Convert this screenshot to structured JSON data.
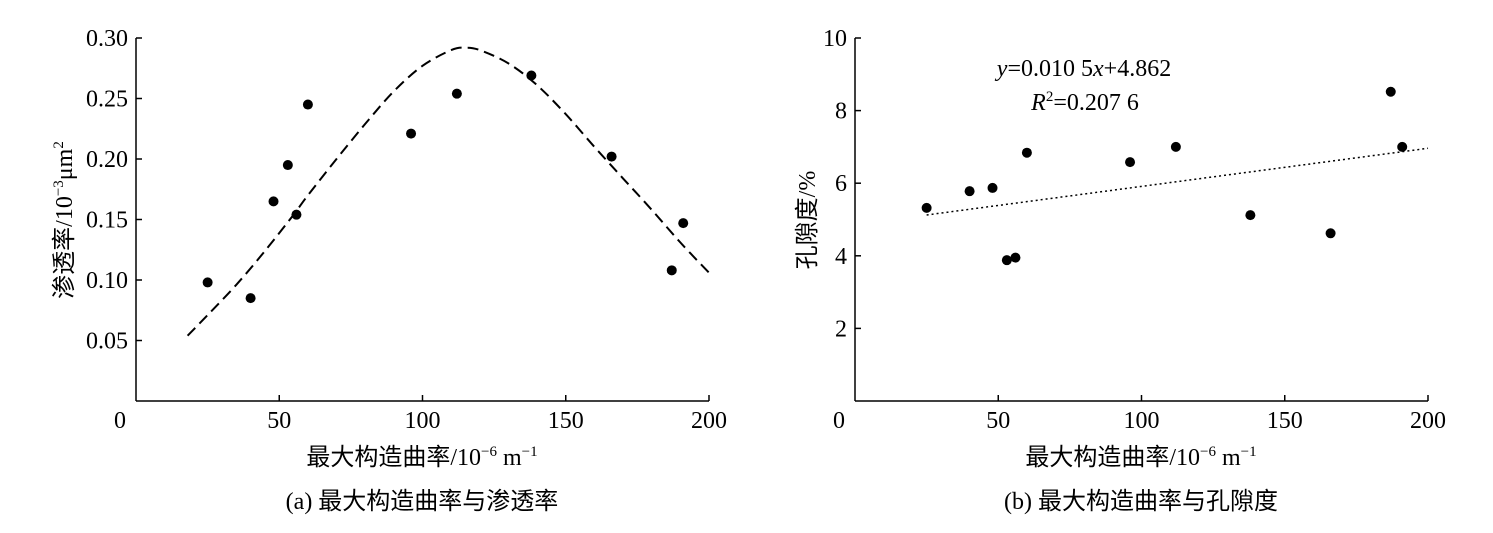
{
  "chart_data": [
    {
      "type": "scatter",
      "panel": "a",
      "caption": "(a) 最大构造曲率与渗透率",
      "xlabel_main": "最大构造曲率/10",
      "xlabel_exp": "−6",
      "xlabel_unit": " m",
      "xlabel_unit_exp": "−1",
      "ylabel_main": "渗透率/10",
      "ylabel_exp": "−3",
      "ylabel_unit": "μm",
      "ylabel_unit_exp": "2",
      "xlim": [
        0,
        200
      ],
      "ylim": [
        0,
        0.3
      ],
      "x_origin_label": "0",
      "xticks": [
        "50",
        "100",
        "150",
        "200"
      ],
      "yticks": [
        "0.05",
        "0.10",
        "0.15",
        "0.20",
        "0.25",
        "0.30"
      ],
      "points": [
        {
          "x": 25,
          "y": 0.098
        },
        {
          "x": 40,
          "y": 0.085
        },
        {
          "x": 48,
          "y": 0.165
        },
        {
          "x": 53,
          "y": 0.195
        },
        {
          "x": 56,
          "y": 0.154
        },
        {
          "x": 60,
          "y": 0.245
        },
        {
          "x": 96,
          "y": 0.221
        },
        {
          "x": 112,
          "y": 0.254
        },
        {
          "x": 138,
          "y": 0.269
        },
        {
          "x": 166,
          "y": 0.202
        },
        {
          "x": 187,
          "y": 0.108
        },
        {
          "x": 191,
          "y": 0.147
        }
      ],
      "fit_curve": {
        "style": "dashed",
        "x": [
          18,
          25,
          35,
          45,
          55,
          60,
          70,
          80,
          90,
          100,
          110,
          115,
          120,
          130,
          140,
          150,
          160,
          170,
          180,
          190,
          200
        ],
        "y": [
          0.054,
          0.071,
          0.096,
          0.124,
          0.154,
          0.17,
          0.2,
          0.229,
          0.256,
          0.277,
          0.29,
          0.292,
          0.29,
          0.279,
          0.261,
          0.237,
          0.21,
          0.184,
          0.158,
          0.131,
          0.106
        ]
      }
    },
    {
      "type": "scatter",
      "panel": "b",
      "caption": "(b) 最大构造曲率与孔隙度",
      "xlabel_main": "最大构造曲率/10",
      "xlabel_exp": "−6",
      "xlabel_unit": " m",
      "xlabel_unit_exp": "−1",
      "ylabel_main": "孔隙度/%",
      "xlim": [
        0,
        200
      ],
      "ylim": [
        0,
        10
      ],
      "x_origin_label": "0",
      "xticks": [
        "50",
        "100",
        "150",
        "200"
      ],
      "yticks": [
        "2",
        "4",
        "6",
        "8",
        "10"
      ],
      "points": [
        {
          "x": 25,
          "y": 5.32
        },
        {
          "x": 40,
          "y": 5.78
        },
        {
          "x": 48,
          "y": 5.87
        },
        {
          "x": 53,
          "y": 3.88
        },
        {
          "x": 56,
          "y": 3.95
        },
        {
          "x": 60,
          "y": 6.84
        },
        {
          "x": 96,
          "y": 6.58
        },
        {
          "x": 112,
          "y": 7.0
        },
        {
          "x": 138,
          "y": 5.12
        },
        {
          "x": 166,
          "y": 4.62
        },
        {
          "x": 187,
          "y": 8.52
        },
        {
          "x": 191,
          "y": 7.0
        }
      ],
      "trendline": {
        "style": "dotted",
        "slope": 0.0105,
        "intercept": 4.862,
        "x_from": 25,
        "x_to": 200
      },
      "equation": {
        "y_var": "y",
        "eq_mid": "=0.010 5",
        "x_var": "x",
        "eq_tail": "+4.862",
        "r_var": "R",
        "r_exp": "2",
        "r_value": "=0.207 6"
      }
    }
  ]
}
